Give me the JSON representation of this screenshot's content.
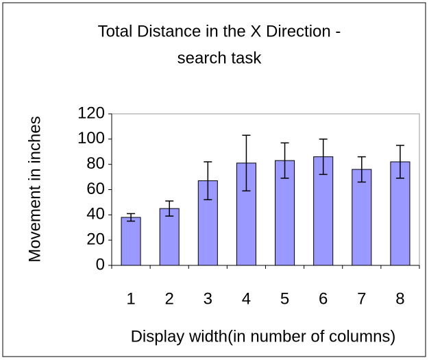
{
  "chart_data": {
    "type": "bar",
    "title": [
      "Total Distance in the X Direction -",
      "search task"
    ],
    "ylabel": "Movement in inches",
    "xlabel": "Display width(in number of columns)",
    "categories": [
      "1",
      "2",
      "3",
      "4",
      "5",
      "6",
      "7",
      "8"
    ],
    "values": [
      38,
      45,
      67,
      81,
      83,
      86,
      76,
      82
    ],
    "errors": [
      3,
      6,
      15,
      22,
      14,
      14,
      10,
      13
    ],
    "color": "#9999ff",
    "ylim": [
      0,
      120
    ],
    "yticks": [
      0,
      20,
      40,
      60,
      80,
      100,
      120
    ],
    "grid": false
  }
}
